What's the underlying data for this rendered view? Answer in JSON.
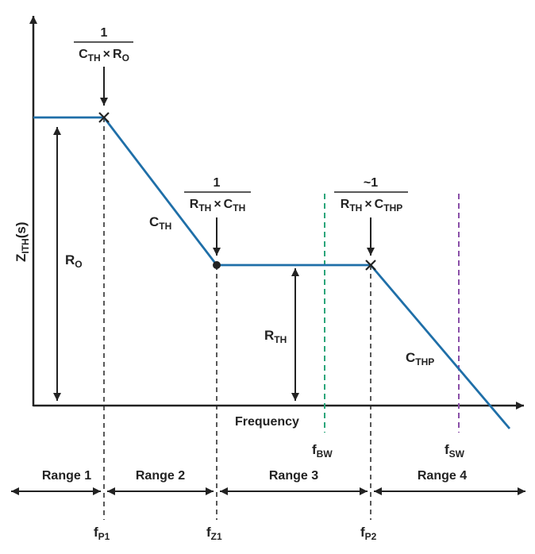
{
  "axes": {
    "y_label_main": "Z",
    "y_label_sub": "ITH",
    "y_label_suffix": "(s)",
    "x_label": "Frequency"
  },
  "annotations": {
    "p1": {
      "numerator": "1",
      "den_a": "C",
      "den_a_sub": "TH",
      "times": "×",
      "den_b": "R",
      "den_b_sub": "O"
    },
    "z1": {
      "numerator": "1",
      "den_a": "R",
      "den_a_sub": "TH",
      "times": "×",
      "den_b": "C",
      "den_b_sub": "TH"
    },
    "p2": {
      "numerator": "~1",
      "den_a": "R",
      "den_a_sub": "TH",
      "times": "×",
      "den_b": "C",
      "den_b_sub": "THP"
    }
  },
  "curve_labels": {
    "cth": {
      "main": "C",
      "sub": "TH"
    },
    "cthp": {
      "main": "C",
      "sub": "THP"
    },
    "r0": {
      "main": "R",
      "sub": "O"
    },
    "rth": {
      "main": "R",
      "sub": "TH"
    }
  },
  "freq_labels": {
    "fp1": {
      "main": "f",
      "sub": "P1"
    },
    "fz1": {
      "main": "f",
      "sub": "Z1"
    },
    "fp2": {
      "main": "f",
      "sub": "P2"
    },
    "fbw": {
      "main": "f",
      "sub": "BW"
    },
    "fsw": {
      "main": "f",
      "sub": "SW"
    }
  },
  "ranges": [
    "Range 1",
    "Range 2",
    "Range 3",
    "Range 4"
  ],
  "colors": {
    "curve": "#1f6fa8",
    "axis": "#222222",
    "bw_line": "#2aa57a",
    "sw_line": "#8a4fa8"
  }
}
